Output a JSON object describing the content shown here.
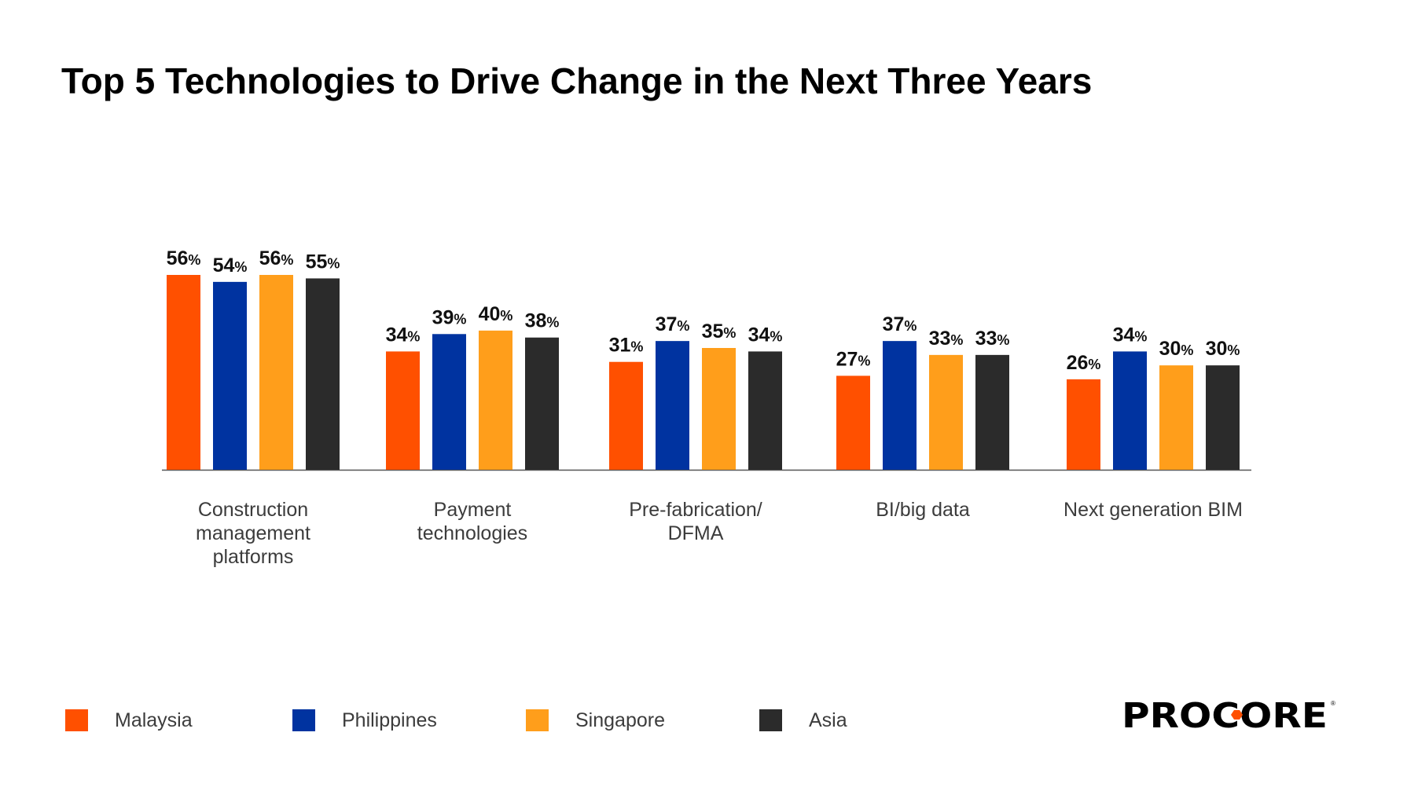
{
  "chart_data": {
    "type": "bar",
    "title": "Top 5 Technologies to Drive Change in the Next Three Years",
    "categories": [
      "Construction management platforms",
      "Payment technologies",
      "Pre-fabrication/ DFMA",
      "BI/big data",
      "Next generation BIM"
    ],
    "category_lines": [
      [
        "Construction",
        "management",
        "platforms"
      ],
      [
        "Payment",
        "technologies"
      ],
      [
        "Pre-fabrication/",
        "DFMA"
      ],
      [
        "BI/big data"
      ],
      [
        "Next generation BIM"
      ]
    ],
    "series": [
      {
        "name": "Malaysia",
        "color": "#FF5000",
        "values": [
          56,
          34,
          31,
          27,
          26
        ]
      },
      {
        "name": "Philippines",
        "color": "#0033A0",
        "values": [
          54,
          39,
          37,
          37,
          34
        ]
      },
      {
        "name": "Singapore",
        "color": "#FF9E1B",
        "values": [
          56,
          40,
          35,
          33,
          30
        ]
      },
      {
        "name": "Asia",
        "color": "#2B2B2B",
        "values": [
          55,
          38,
          34,
          33,
          30
        ]
      }
    ],
    "value_suffix": "%",
    "ylim": [
      0,
      60
    ],
    "grid": false,
    "legend_position": "bottom-left",
    "xlabel": "",
    "ylabel": ""
  },
  "logo": {
    "text": "PROCORE",
    "accent": "#FF5000"
  }
}
